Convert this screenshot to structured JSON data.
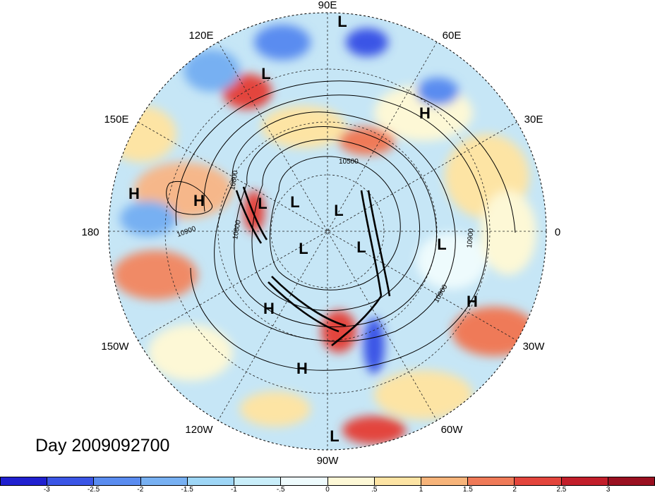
{
  "title": "Day 2009092700",
  "longitude_labels": [
    "90E",
    "60E",
    "30E",
    "0",
    "30W",
    "60W",
    "90W",
    "120W",
    "150W",
    "180",
    "150E",
    "120E"
  ],
  "pressure_centers": [
    "L",
    "L",
    "H",
    "L",
    "L",
    "L",
    "L",
    "L",
    "L",
    "H",
    "H",
    "H",
    "H",
    "L",
    "H",
    "H",
    "L"
  ],
  "contour_labels": [
    "10500",
    "10800",
    "10800",
    "10900",
    "10900",
    "10900"
  ],
  "colorbar": {
    "ticks": [
      "-3",
      "-2.5",
      "-2",
      "-1.5",
      "-1",
      "-.5",
      "0",
      ".5",
      "1",
      "1.5",
      "2",
      "2.5",
      "3"
    ],
    "colors": [
      "#2020d0",
      "#3a55e6",
      "#5a8cf0",
      "#77b0f2",
      "#9ed6f6",
      "#c9eefa",
      "#eefbfd",
      "#fdf8d6",
      "#fde4a4",
      "#f7b47a",
      "#ef7a58",
      "#e3453c",
      "#c21e2a",
      "#9a1020"
    ]
  }
}
